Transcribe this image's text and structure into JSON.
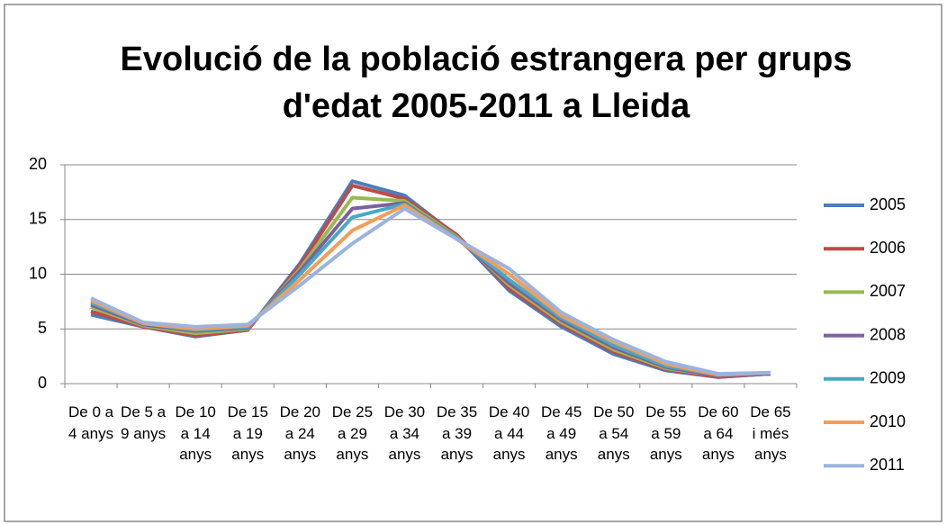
{
  "chart_data": {
    "type": "line",
    "title": "Evolució de la població estrangera per grups d'edat 2005-2011 a Lleida",
    "categories": [
      "De 0 a 4 anys",
      "De 5 a 9 anys",
      "De 10 a 14 anys",
      "De 15 a 19 anys",
      "De 20 a 24 anys",
      "De 25 a 29 anys",
      "De 30 a 34 anys",
      "De 35 a 39 anys",
      "De 40 a 44 anys",
      "De 45 a 49 anys",
      "De 50 a 54 anys",
      "De 55 a 59 anys",
      "De 60 a 64 anys",
      "De 65 i més anys"
    ],
    "series": [
      {
        "name": "2005",
        "color": "#4a7ebb",
        "values": [
          6.3,
          5.2,
          4.3,
          4.9,
          11,
          18.5,
          17.2,
          13.5,
          8.5,
          5.2,
          2.7,
          1.2,
          0.6,
          0.9
        ]
      },
      {
        "name": "2006",
        "color": "#be4b48",
        "values": [
          6.6,
          5.2,
          4.4,
          4.9,
          10.8,
          18.1,
          16.9,
          13.6,
          8.7,
          5.4,
          2.9,
          1.3,
          0.6,
          0.9
        ]
      },
      {
        "name": "2007",
        "color": "#98b954",
        "values": [
          7.0,
          5.3,
          4.6,
          5.0,
          10.5,
          17.0,
          16.7,
          13.4,
          9.0,
          5.6,
          3.1,
          1.4,
          0.7,
          0.9
        ]
      },
      {
        "name": "2008",
        "color": "#7d60a0",
        "values": [
          7.2,
          5.4,
          4.8,
          5.1,
          10.3,
          16.0,
          16.5,
          13.3,
          9.2,
          5.8,
          3.3,
          1.5,
          0.7,
          0.9
        ]
      },
      {
        "name": "2009",
        "color": "#46aac5",
        "values": [
          7.4,
          5.5,
          4.9,
          5.2,
          10.0,
          15.2,
          16.4,
          13.3,
          9.5,
          6.0,
          3.5,
          1.6,
          0.8,
          1.0
        ]
      },
      {
        "name": "2010",
        "color": "#f59d56",
        "values": [
          7.6,
          5.5,
          5.0,
          5.3,
          9.5,
          14.0,
          16.3,
          13.2,
          10.0,
          6.2,
          3.8,
          1.8,
          0.8,
          1.0
        ]
      },
      {
        "name": "2011",
        "color": "#9bb3e0",
        "values": [
          7.8,
          5.6,
          5.2,
          5.4,
          9.0,
          12.8,
          16.0,
          13.2,
          10.5,
          6.5,
          4.0,
          2.0,
          0.9,
          1.0
        ]
      }
    ],
    "ylim": [
      0,
      20
    ],
    "yticks": [
      0,
      5,
      10,
      15,
      20
    ],
    "grid": true,
    "legend": "right"
  }
}
